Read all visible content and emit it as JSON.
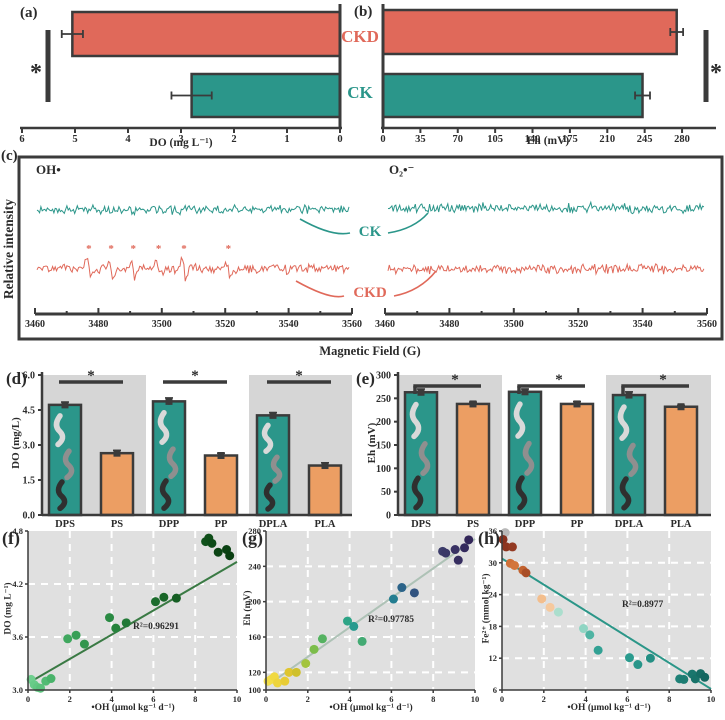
{
  "colors": {
    "salmon": "#E0695A",
    "teal": "#2B968A",
    "orange": "#EC9E63",
    "dark": "#3B3B3B",
    "stripe_gray": "#D6D6D6",
    "scatter_bg": "#E0E0E0",
    "worm_light": "#D9D9D9",
    "worm_mid": "#8F8F8F",
    "worm_dark": "#2F2F2F"
  },
  "chart_data": [
    {
      "id": "a",
      "panel_label": "(a)",
      "type": "bar",
      "orientation": "horizontal",
      "axis_reversed": true,
      "xlabel": "DO (mg L⁻¹)",
      "x_ticks": [
        6,
        5,
        4,
        3,
        2,
        1,
        0
      ],
      "categories": [
        "CKD",
        "CK"
      ],
      "values": [
        5.05,
        2.8
      ],
      "errors": [
        0.2,
        0.38
      ],
      "bar_colors": [
        "#E0695A",
        "#2B968A"
      ],
      "significance": "*"
    },
    {
      "id": "b",
      "panel_label": "(b)",
      "type": "bar",
      "orientation": "horizontal",
      "xlabel": "Eh (mV)",
      "x_ticks": [
        0,
        35,
        70,
        105,
        140,
        175,
        210,
        245,
        280
      ],
      "categories": [
        "CKD",
        "CK"
      ],
      "values": [
        275,
        243
      ],
      "errors": [
        6,
        7
      ],
      "bar_colors": [
        "#E0695A",
        "#2B968A"
      ],
      "significance": "*"
    },
    {
      "id": "c",
      "panel_label": "(c)",
      "type": "epr-spectra",
      "ylabel": "Relative intensity",
      "xlabel": "Magnetic Field (G)",
      "x_ticks": [
        3460,
        3480,
        3500,
        3520,
        3540,
        3560
      ],
      "series_labels": [
        "CK",
        "CKD"
      ],
      "series_colors": [
        "#2B968A",
        "#E0695A"
      ],
      "subpanels": [
        {
          "title": "OH•",
          "ckd_peaks": [
            [
              3477,
              13
            ],
            [
              3484,
              8
            ],
            [
              3491,
              12
            ],
            [
              3499,
              8
            ],
            [
              3507,
              12
            ],
            [
              3521,
              9
            ]
          ],
          "peak_marker": "*"
        },
        {
          "title": "O₂•⁻",
          "ckd_peaks": []
        }
      ]
    },
    {
      "id": "d",
      "panel_label": "(d)",
      "type": "bar",
      "ylabel": "DO (mg/L)",
      "ylim": [
        0,
        6
      ],
      "y_ticks": [
        0,
        1.5,
        3,
        4.5,
        6
      ],
      "y_tick_labels": [
        "0.0",
        "1.5",
        "3.0",
        "4.5",
        "6.0"
      ],
      "categories": [
        "DPS",
        "PS",
        "DPP",
        "PP",
        "DPLA",
        "PLA"
      ],
      "values": [
        4.72,
        2.65,
        4.87,
        2.55,
        4.27,
        2.12
      ],
      "errors": [
        0.12,
        0.12,
        0.15,
        0.1,
        0.12,
        0.12
      ],
      "bar_colors": [
        "#2B968A",
        "#EC9E63",
        "#2B968A",
        "#EC9E63",
        "#2B968A",
        "#EC9E63"
      ],
      "significance": [
        "*",
        "*",
        "*"
      ]
    },
    {
      "id": "e",
      "panel_label": "(e)",
      "type": "bar",
      "ylabel": "Eh (mV)",
      "ylim": [
        0,
        300
      ],
      "y_ticks": [
        0,
        50,
        100,
        150,
        200,
        250,
        300
      ],
      "y_tick_labels": [
        "0",
        "50",
        "100",
        "150",
        "200",
        "250",
        "300"
      ],
      "categories": [
        "DPS",
        "PS",
        "DPP",
        "PP",
        "DPLA",
        "PLA"
      ],
      "values": [
        263,
        238,
        264,
        238,
        257,
        232
      ],
      "errors": [
        7,
        4,
        6,
        5,
        7,
        3
      ],
      "bar_colors": [
        "#2B968A",
        "#EC9E63",
        "#2B968A",
        "#EC9E63",
        "#2B968A",
        "#EC9E63"
      ],
      "significance": [
        "*",
        "*",
        "*"
      ]
    },
    {
      "id": "f",
      "panel_label": "(f)",
      "type": "scatter",
      "xlabel": "•OH (μmol kg⁻¹ d⁻¹)",
      "ylabel": "DO (mg L⁻¹)",
      "r2": "R²=0.96291",
      "xlim": [
        0,
        10
      ],
      "ylim": [
        3.0,
        4.8
      ],
      "x_ticks": [
        0,
        2,
        4,
        6,
        8,
        10
      ],
      "y_ticks": [
        3.0,
        3.6,
        4.2,
        4.8
      ],
      "y_tick_labels": [
        "3.0",
        "3.6",
        "4.2",
        "4.8"
      ],
      "trend": {
        "x": [
          0.1,
          10
        ],
        "y": [
          3.09,
          4.45
        ],
        "color": "#3A7A44"
      },
      "points": [
        [
          0.15,
          3.12,
          "#6FCF8E"
        ],
        [
          0.3,
          3.06,
          "#68CB88"
        ],
        [
          0.45,
          3.03,
          "#62C782"
        ],
        [
          0.6,
          3.02,
          "#5CC27C"
        ],
        [
          0.85,
          3.1,
          "#52BB73"
        ],
        [
          1.1,
          3.13,
          "#49B36A"
        ],
        [
          1.9,
          3.58,
          "#3FA75E"
        ],
        [
          2.3,
          3.62,
          "#389F56"
        ],
        [
          2.7,
          3.52,
          "#32964D"
        ],
        [
          3.9,
          3.82,
          "#2A8A43"
        ],
        [
          4.2,
          3.7,
          "#27833D"
        ],
        [
          4.7,
          3.76,
          "#227A37"
        ],
        [
          6.1,
          4.0,
          "#1C6C2D"
        ],
        [
          6.5,
          4.05,
          "#196628"
        ],
        [
          7.1,
          4.04,
          "#155E23"
        ],
        [
          8.5,
          4.68,
          "#10511B"
        ],
        [
          8.65,
          4.72,
          "#0F4E19"
        ],
        [
          8.8,
          4.66,
          "#0E4B18"
        ],
        [
          9.1,
          4.56,
          "#0C4515"
        ],
        [
          9.5,
          4.59,
          "#0B4213"
        ],
        [
          9.65,
          4.52,
          "#0A3F12"
        ]
      ]
    },
    {
      "id": "g",
      "panel_label": "(g)",
      "type": "scatter",
      "xlabel": "•OH (μmol kg⁻¹ d⁻¹)",
      "ylabel": "Eh (mV)",
      "r2": "R²=0.97785",
      "xlim": [
        0,
        10
      ],
      "ylim": [
        100,
        280
      ],
      "x_ticks": [
        0,
        2,
        4,
        6,
        8,
        10
      ],
      "y_ticks": [
        100,
        120,
        160,
        200,
        240,
        280
      ],
      "y_tick_labels": [
        "100",
        "120",
        "160",
        "200",
        "240",
        "280"
      ],
      "trend": {
        "x": [
          0.05,
          10
        ],
        "y": [
          105,
          271
        ],
        "color": "#AEC2B6"
      },
      "points": [
        [
          0.1,
          110,
          "#F4E04B"
        ],
        [
          0.25,
          112,
          "#F2DD46"
        ],
        [
          0.4,
          115,
          "#F0D941"
        ],
        [
          0.55,
          108,
          "#EDD43C"
        ],
        [
          0.9,
          110,
          "#E8CC35"
        ],
        [
          1.1,
          120,
          "#DFC52F"
        ],
        [
          1.45,
          120,
          "#CFC02C"
        ],
        [
          1.9,
          130,
          "#A3C43E"
        ],
        [
          2.3,
          146,
          "#7CBD4A"
        ],
        [
          2.7,
          158,
          "#55B261"
        ],
        [
          3.9,
          178,
          "#2DA486"
        ],
        [
          4.2,
          172,
          "#289A8E"
        ],
        [
          4.6,
          155,
          "#43AA73"
        ],
        [
          6.1,
          203,
          "#237D90"
        ],
        [
          6.5,
          216,
          "#2B6389"
        ],
        [
          7.1,
          210,
          "#325480"
        ],
        [
          8.45,
          257,
          "#3C3C6A"
        ],
        [
          8.6,
          255,
          "#3A3867"
        ],
        [
          9.05,
          259,
          "#383163"
        ],
        [
          9.2,
          247,
          "#362E60"
        ],
        [
          9.5,
          261,
          "#342A5D"
        ],
        [
          9.7,
          270,
          "#322659"
        ]
      ]
    },
    {
      "id": "h",
      "panel_label": "(h)",
      "type": "scatter",
      "xlabel": "•OH (μmol kg⁻¹ d⁻¹)",
      "ylabel": "Fe²⁺ (mmol kg⁻¹)",
      "r2": "R²=0.8977",
      "xlim": [
        0,
        10
      ],
      "ylim": [
        6,
        36
      ],
      "x_ticks": [
        0,
        2,
        4,
        6,
        8,
        10
      ],
      "y_ticks": [
        6,
        12,
        18,
        24,
        30,
        36
      ],
      "y_tick_labels": [
        "6",
        "12",
        "18",
        "24",
        "30",
        "36"
      ],
      "trend": {
        "x": [
          0,
          10
        ],
        "y": [
          30.8,
          6.2
        ],
        "color": "#2B9688"
      },
      "points": [
        [
          0.15,
          35.7,
          "#B8B8B8"
        ],
        [
          0.05,
          34.4,
          "#87301D"
        ],
        [
          0.2,
          33.0,
          "#8D3520"
        ],
        [
          0.5,
          33.0,
          "#933A22"
        ],
        [
          0.4,
          29.9,
          "#CF7038"
        ],
        [
          0.6,
          29.5,
          "#D3763B"
        ],
        [
          1.0,
          28.6,
          "#C2622E"
        ],
        [
          1.15,
          28.1,
          "#A94E27"
        ],
        [
          1.9,
          23.2,
          "#F3BE8D"
        ],
        [
          2.3,
          21.6,
          "#F6C99D"
        ],
        [
          2.7,
          20.7,
          "#ABDECD"
        ],
        [
          3.9,
          17.6,
          "#90D5C3"
        ],
        [
          4.2,
          16.4,
          "#4FB4A3"
        ],
        [
          4.6,
          13.5,
          "#32A194"
        ],
        [
          6.1,
          12.1,
          "#2B9B8E"
        ],
        [
          6.5,
          10.8,
          "#289589"
        ],
        [
          7.1,
          12.0,
          "#248F84"
        ],
        [
          8.5,
          8.1,
          "#1E8076"
        ],
        [
          8.7,
          8.0,
          "#1C7C72"
        ],
        [
          9.1,
          9.0,
          "#1A766D"
        ],
        [
          9.25,
          8.1,
          "#187269"
        ],
        [
          9.5,
          9.1,
          "#166C64"
        ],
        [
          9.7,
          8.4,
          "#146660"
        ]
      ]
    }
  ]
}
